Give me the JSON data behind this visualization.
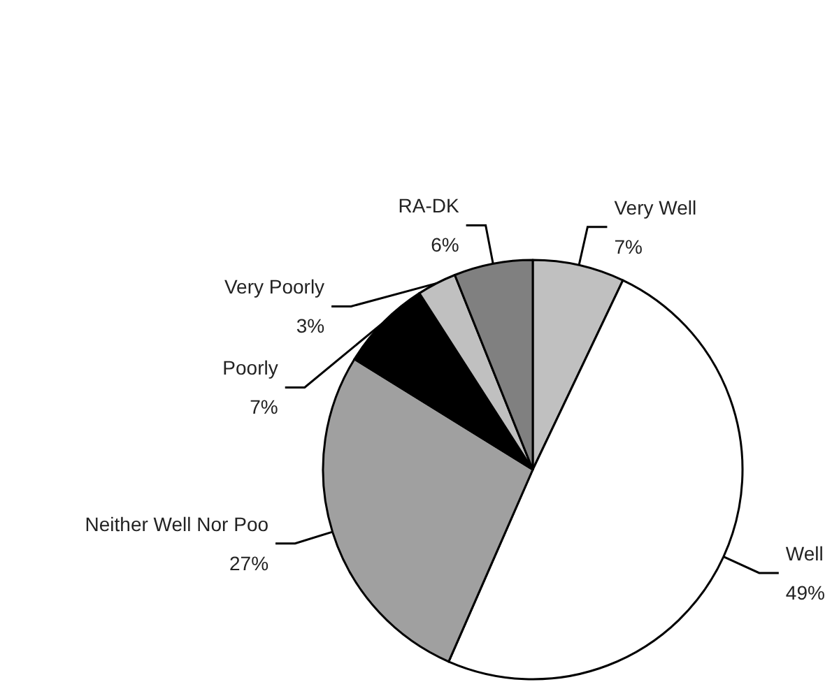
{
  "chart_data": {
    "type": "pie",
    "categories": [
      "Very Well",
      "Well",
      "Neither Well Nor Poo",
      "Poorly",
      "Very Poorly",
      "RA-DK"
    ],
    "values": [
      7,
      49,
      27,
      7,
      3,
      6
    ],
    "value_labels": [
      "7%",
      "49%",
      "27%",
      "7%",
      "3%",
      "6%"
    ],
    "colors": [
      "#c0c0c0",
      "#ffffff",
      "#a0a0a0",
      "#000000",
      "#c0c0c0",
      "#808080"
    ],
    "legend": false
  }
}
